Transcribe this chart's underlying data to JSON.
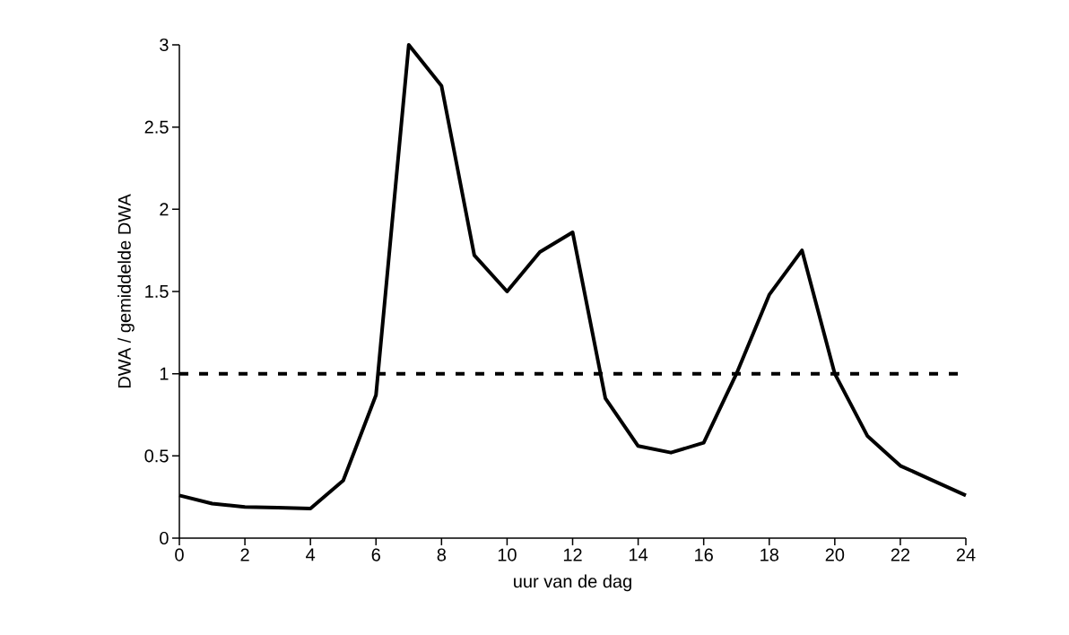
{
  "chart_data": {
    "type": "line",
    "xlabel": "uur van de dag",
    "ylabel": "DWA / gemiddelde DWA",
    "x": [
      0,
      1,
      2,
      3,
      4,
      5,
      6,
      7,
      8,
      9,
      10,
      11,
      12,
      13,
      14,
      15,
      16,
      17,
      18,
      19,
      20,
      21,
      22,
      23,
      24
    ],
    "series": [
      {
        "color": "#000000",
        "values": [
          0.26,
          0.21,
          0.19,
          0.185,
          0.18,
          0.35,
          0.87,
          3.0,
          2.75,
          1.72,
          1.5,
          1.74,
          1.86,
          0.85,
          0.56,
          0.52,
          0.58,
          1.0,
          1.48,
          1.75,
          1.0,
          0.62,
          0.44,
          0.35,
          0.26
        ]
      }
    ],
    "xlim": [
      0,
      24
    ],
    "ylim": [
      0,
      3
    ],
    "xticks": [
      0,
      2,
      4,
      6,
      8,
      10,
      12,
      14,
      16,
      18,
      20,
      22,
      24
    ],
    "yticks": [
      0,
      0.5,
      1,
      1.5,
      2,
      2.5,
      3
    ],
    "ref_lines": [
      {
        "axis": "y",
        "value": 1,
        "color": "#000000",
        "line_style": "dashed"
      }
    ],
    "grid": false,
    "marker": "none",
    "line_style": "solid"
  }
}
